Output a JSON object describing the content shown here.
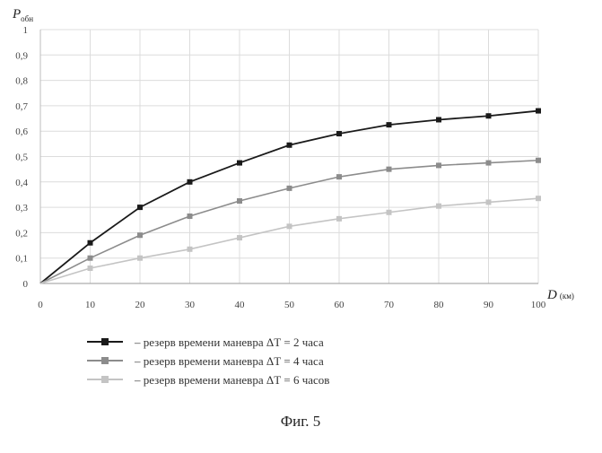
{
  "figure": {
    "caption": "Фиг. 5"
  },
  "chart_data": {
    "type": "line",
    "title": "",
    "ylabel": "P",
    "ylabel_sub": "обн",
    "xlabel": "D",
    "xlabel_unit": "(км)",
    "xlim": [
      0,
      100
    ],
    "ylim": [
      0,
      1
    ],
    "x_ticks": [
      "0",
      "10",
      "20",
      "30",
      "40",
      "50",
      "60",
      "70",
      "80",
      "90",
      "100"
    ],
    "y_ticks": [
      "0",
      "0,1",
      "0,2",
      "0,3",
      "0,4",
      "0,5",
      "0,6",
      "0,7",
      "0,8",
      "0,9",
      "1"
    ],
    "grid": true,
    "legend_position": "bottom",
    "x": [
      0,
      10,
      20,
      30,
      40,
      50,
      60,
      70,
      80,
      90,
      100
    ],
    "series": [
      {
        "name": "– резерв времени маневра ΔТ = 2 часа",
        "color": "#1a1a1a",
        "marker": "square",
        "values": [
          0,
          0.16,
          0.3,
          0.4,
          0.475,
          0.545,
          0.59,
          0.625,
          0.645,
          0.66,
          0.68
        ]
      },
      {
        "name": "– резерв времени маневра ΔТ = 4 часа",
        "color": "#8c8c8c",
        "marker": "square",
        "values": [
          0,
          0.1,
          0.19,
          0.265,
          0.325,
          0.375,
          0.42,
          0.45,
          0.465,
          0.475,
          0.485
        ]
      },
      {
        "name": "– резерв времени маневра ΔТ = 6 часов",
        "color": "#c4c4c4",
        "marker": "square",
        "values": [
          0,
          0.06,
          0.1,
          0.135,
          0.18,
          0.225,
          0.255,
          0.28,
          0.305,
          0.32,
          0.335
        ]
      }
    ]
  }
}
